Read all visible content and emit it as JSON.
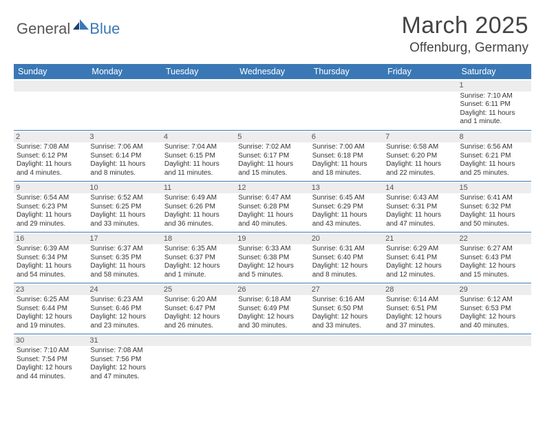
{
  "header": {
    "logo_general": "General",
    "logo_blue": "Blue",
    "month_title": "March 2025",
    "location": "Offenburg, Germany"
  },
  "colors": {
    "header_bg": "#3a78b5",
    "header_text": "#ffffff",
    "daynum_bg": "#ededed",
    "border": "#3a78b5",
    "body_text": "#333333",
    "title_text": "#444444"
  },
  "weekdays": [
    "Sunday",
    "Monday",
    "Tuesday",
    "Wednesday",
    "Thursday",
    "Friday",
    "Saturday"
  ],
  "weeks": [
    [
      {
        "day": "",
        "lines": []
      },
      {
        "day": "",
        "lines": []
      },
      {
        "day": "",
        "lines": []
      },
      {
        "day": "",
        "lines": []
      },
      {
        "day": "",
        "lines": []
      },
      {
        "day": "",
        "lines": []
      },
      {
        "day": "1",
        "lines": [
          "Sunrise: 7:10 AM",
          "Sunset: 6:11 PM",
          "Daylight: 11 hours",
          "and 1 minute."
        ]
      }
    ],
    [
      {
        "day": "2",
        "lines": [
          "Sunrise: 7:08 AM",
          "Sunset: 6:12 PM",
          "Daylight: 11 hours",
          "and 4 minutes."
        ]
      },
      {
        "day": "3",
        "lines": [
          "Sunrise: 7:06 AM",
          "Sunset: 6:14 PM",
          "Daylight: 11 hours",
          "and 8 minutes."
        ]
      },
      {
        "day": "4",
        "lines": [
          "Sunrise: 7:04 AM",
          "Sunset: 6:15 PM",
          "Daylight: 11 hours",
          "and 11 minutes."
        ]
      },
      {
        "day": "5",
        "lines": [
          "Sunrise: 7:02 AM",
          "Sunset: 6:17 PM",
          "Daylight: 11 hours",
          "and 15 minutes."
        ]
      },
      {
        "day": "6",
        "lines": [
          "Sunrise: 7:00 AM",
          "Sunset: 6:18 PM",
          "Daylight: 11 hours",
          "and 18 minutes."
        ]
      },
      {
        "day": "7",
        "lines": [
          "Sunrise: 6:58 AM",
          "Sunset: 6:20 PM",
          "Daylight: 11 hours",
          "and 22 minutes."
        ]
      },
      {
        "day": "8",
        "lines": [
          "Sunrise: 6:56 AM",
          "Sunset: 6:21 PM",
          "Daylight: 11 hours",
          "and 25 minutes."
        ]
      }
    ],
    [
      {
        "day": "9",
        "lines": [
          "Sunrise: 6:54 AM",
          "Sunset: 6:23 PM",
          "Daylight: 11 hours",
          "and 29 minutes."
        ]
      },
      {
        "day": "10",
        "lines": [
          "Sunrise: 6:52 AM",
          "Sunset: 6:25 PM",
          "Daylight: 11 hours",
          "and 33 minutes."
        ]
      },
      {
        "day": "11",
        "lines": [
          "Sunrise: 6:49 AM",
          "Sunset: 6:26 PM",
          "Daylight: 11 hours",
          "and 36 minutes."
        ]
      },
      {
        "day": "12",
        "lines": [
          "Sunrise: 6:47 AM",
          "Sunset: 6:28 PM",
          "Daylight: 11 hours",
          "and 40 minutes."
        ]
      },
      {
        "day": "13",
        "lines": [
          "Sunrise: 6:45 AM",
          "Sunset: 6:29 PM",
          "Daylight: 11 hours",
          "and 43 minutes."
        ]
      },
      {
        "day": "14",
        "lines": [
          "Sunrise: 6:43 AM",
          "Sunset: 6:31 PM",
          "Daylight: 11 hours",
          "and 47 minutes."
        ]
      },
      {
        "day": "15",
        "lines": [
          "Sunrise: 6:41 AM",
          "Sunset: 6:32 PM",
          "Daylight: 11 hours",
          "and 50 minutes."
        ]
      }
    ],
    [
      {
        "day": "16",
        "lines": [
          "Sunrise: 6:39 AM",
          "Sunset: 6:34 PM",
          "Daylight: 11 hours",
          "and 54 minutes."
        ]
      },
      {
        "day": "17",
        "lines": [
          "Sunrise: 6:37 AM",
          "Sunset: 6:35 PM",
          "Daylight: 11 hours",
          "and 58 minutes."
        ]
      },
      {
        "day": "18",
        "lines": [
          "Sunrise: 6:35 AM",
          "Sunset: 6:37 PM",
          "Daylight: 12 hours",
          "and 1 minute."
        ]
      },
      {
        "day": "19",
        "lines": [
          "Sunrise: 6:33 AM",
          "Sunset: 6:38 PM",
          "Daylight: 12 hours",
          "and 5 minutes."
        ]
      },
      {
        "day": "20",
        "lines": [
          "Sunrise: 6:31 AM",
          "Sunset: 6:40 PM",
          "Daylight: 12 hours",
          "and 8 minutes."
        ]
      },
      {
        "day": "21",
        "lines": [
          "Sunrise: 6:29 AM",
          "Sunset: 6:41 PM",
          "Daylight: 12 hours",
          "and 12 minutes."
        ]
      },
      {
        "day": "22",
        "lines": [
          "Sunrise: 6:27 AM",
          "Sunset: 6:43 PM",
          "Daylight: 12 hours",
          "and 15 minutes."
        ]
      }
    ],
    [
      {
        "day": "23",
        "lines": [
          "Sunrise: 6:25 AM",
          "Sunset: 6:44 PM",
          "Daylight: 12 hours",
          "and 19 minutes."
        ]
      },
      {
        "day": "24",
        "lines": [
          "Sunrise: 6:23 AM",
          "Sunset: 6:46 PM",
          "Daylight: 12 hours",
          "and 23 minutes."
        ]
      },
      {
        "day": "25",
        "lines": [
          "Sunrise: 6:20 AM",
          "Sunset: 6:47 PM",
          "Daylight: 12 hours",
          "and 26 minutes."
        ]
      },
      {
        "day": "26",
        "lines": [
          "Sunrise: 6:18 AM",
          "Sunset: 6:49 PM",
          "Daylight: 12 hours",
          "and 30 minutes."
        ]
      },
      {
        "day": "27",
        "lines": [
          "Sunrise: 6:16 AM",
          "Sunset: 6:50 PM",
          "Daylight: 12 hours",
          "and 33 minutes."
        ]
      },
      {
        "day": "28",
        "lines": [
          "Sunrise: 6:14 AM",
          "Sunset: 6:51 PM",
          "Daylight: 12 hours",
          "and 37 minutes."
        ]
      },
      {
        "day": "29",
        "lines": [
          "Sunrise: 6:12 AM",
          "Sunset: 6:53 PM",
          "Daylight: 12 hours",
          "and 40 minutes."
        ]
      }
    ],
    [
      {
        "day": "30",
        "lines": [
          "Sunrise: 7:10 AM",
          "Sunset: 7:54 PM",
          "Daylight: 12 hours",
          "and 44 minutes."
        ]
      },
      {
        "day": "31",
        "lines": [
          "Sunrise: 7:08 AM",
          "Sunset: 7:56 PM",
          "Daylight: 12 hours",
          "and 47 minutes."
        ]
      },
      {
        "day": "",
        "lines": []
      },
      {
        "day": "",
        "lines": []
      },
      {
        "day": "",
        "lines": []
      },
      {
        "day": "",
        "lines": []
      },
      {
        "day": "",
        "lines": []
      }
    ]
  ]
}
